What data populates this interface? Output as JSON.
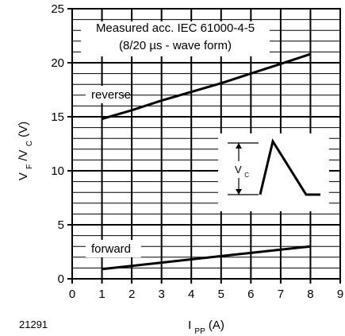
{
  "chart_data": {
    "type": "line",
    "figure_id": "21291",
    "x": [
      1,
      2,
      3,
      4,
      5,
      6,
      7,
      8
    ],
    "series": [
      {
        "name": "reverse",
        "values": [
          14.8,
          15.6,
          16.5,
          17.3,
          18.1,
          19.0,
          19.9,
          20.8
        ]
      },
      {
        "name": "forward",
        "values": [
          0.9,
          1.2,
          1.5,
          1.8,
          2.1,
          2.4,
          2.7,
          3.0
        ]
      }
    ],
    "xlim": [
      0,
      9
    ],
    "ylim": [
      0,
      25
    ],
    "x_ticks": [
      "0",
      "1",
      "2",
      "3",
      "4",
      "5",
      "6",
      "7",
      "8",
      "9"
    ],
    "y_ticks": [
      "0",
      "5",
      "10",
      "15",
      "20",
      "25"
    ],
    "xlabel": {
      "main": "I",
      "sub": "PP",
      "unit": " (A)"
    },
    "ylabel": {
      "part1": "V",
      "sub1": "F",
      "part2": "/V",
      "sub2": "C",
      "unit": " (V)"
    },
    "annotations": {
      "line1": "Measured acc. IEC 61000-4-5",
      "line2": "(8/20 µs - wave form)"
    },
    "inset": {
      "label_main": "V",
      "label_sub": "C"
    },
    "grid": true,
    "legend_placement": "none"
  }
}
